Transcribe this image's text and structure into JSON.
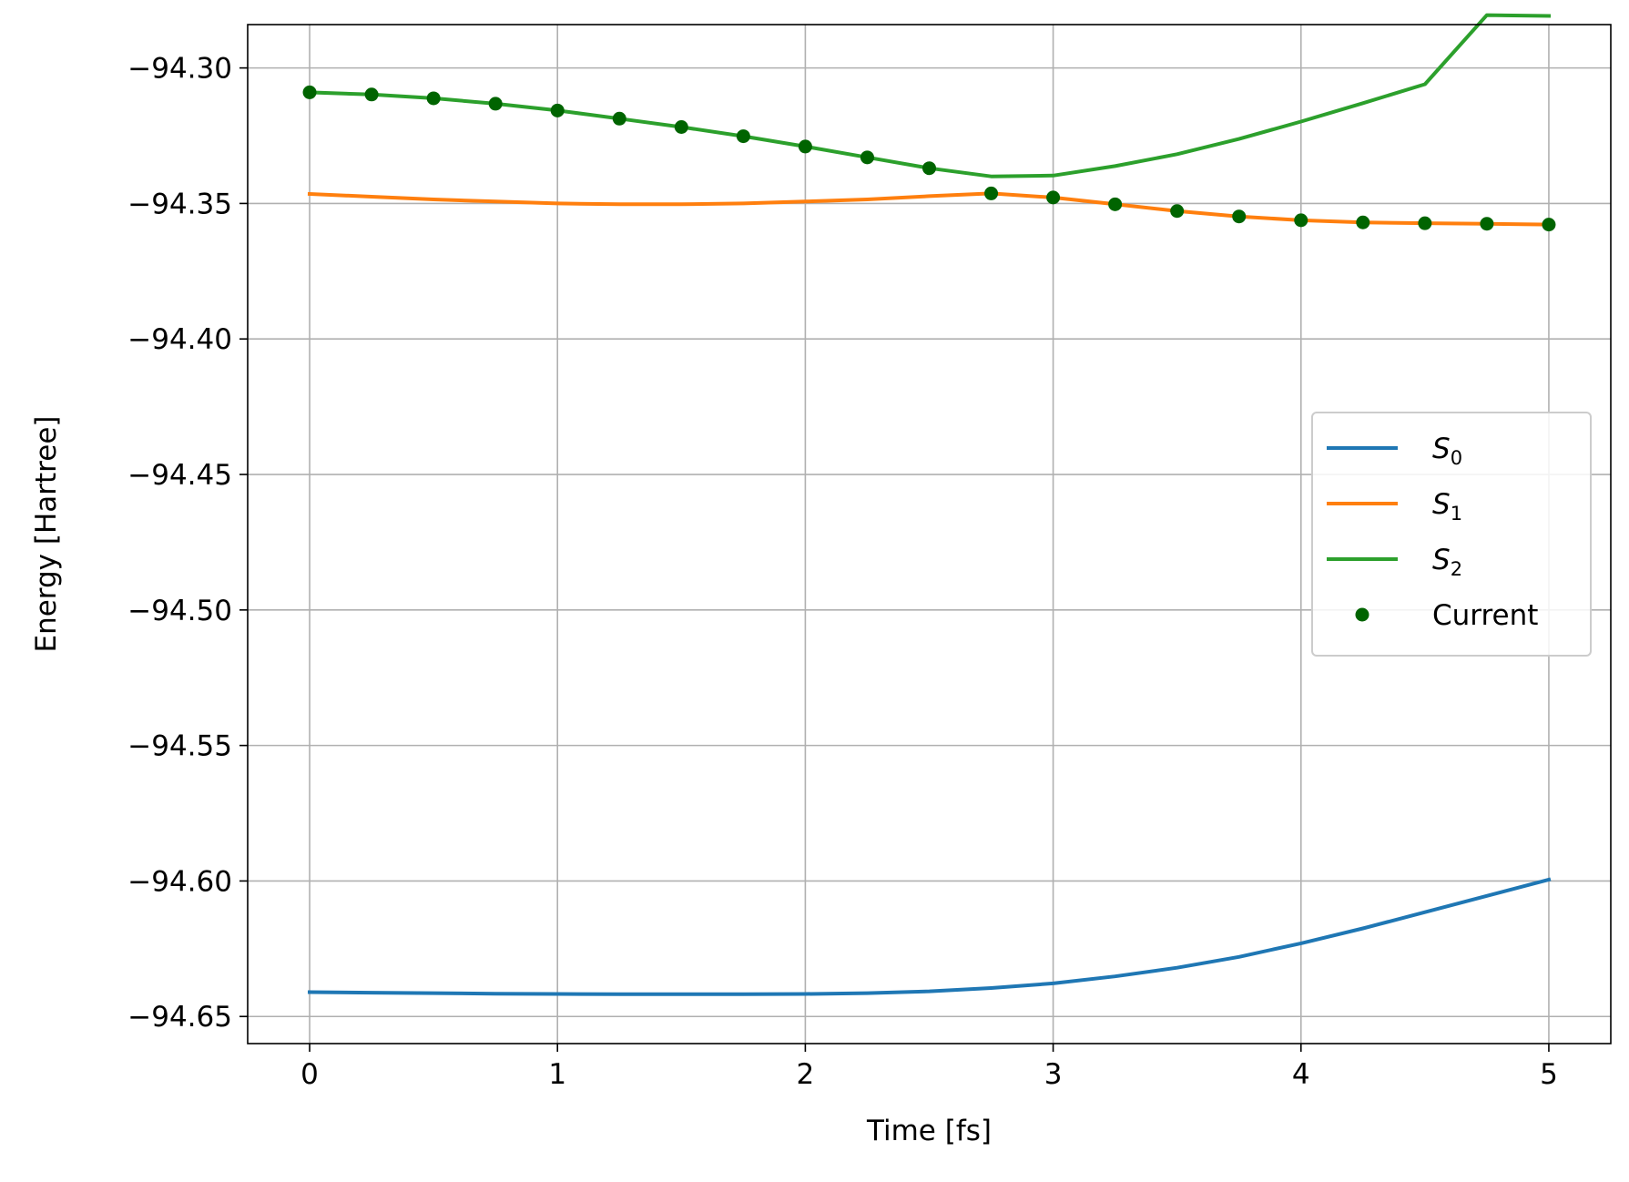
{
  "chart_data": {
    "type": "line",
    "title": "",
    "xlabel": "Time [fs]",
    "ylabel": "Energy [Hartree]",
    "xlim": [
      -0.25,
      5.25
    ],
    "ylim": [
      -94.66,
      -94.284
    ],
    "xticks": [
      0,
      1,
      2,
      3,
      4,
      5
    ],
    "xtick_labels": [
      "0",
      "1",
      "2",
      "3",
      "4",
      "5"
    ],
    "yticks": [
      -94.3,
      -94.35,
      -94.4,
      -94.45,
      -94.5,
      -94.55,
      -94.6,
      -94.65
    ],
    "ytick_labels": [
      "−94.30",
      "−94.35",
      "−94.40",
      "−94.45",
      "−94.50",
      "−94.55",
      "−94.60",
      "−94.65"
    ],
    "grid": true,
    "legend_position": "center-right",
    "x": [
      0,
      0.25,
      0.5,
      0.75,
      1.0,
      1.25,
      1.5,
      1.75,
      2.0,
      2.25,
      2.5,
      2.75,
      3.0,
      3.25,
      3.5,
      3.75,
      4.0,
      4.25,
      4.5,
      4.75,
      5.0
    ],
    "series": [
      {
        "name": "S",
        "subscript": "0",
        "style": "line",
        "color": "#1f77b4",
        "values": [
          -94.641,
          -94.6412,
          -94.6414,
          -94.6416,
          -94.6417,
          -94.6418,
          -94.6418,
          -94.6418,
          -94.6417,
          -94.6414,
          -94.6407,
          -94.6395,
          -94.6378,
          -94.6352,
          -94.632,
          -94.628,
          -94.623,
          -94.6175,
          -94.6115,
          -94.6055,
          -94.5995
        ]
      },
      {
        "name": "S",
        "subscript": "1",
        "style": "line",
        "color": "#ff7f0e",
        "values": [
          -94.3465,
          -94.3475,
          -94.3485,
          -94.3493,
          -94.35,
          -94.3503,
          -94.3503,
          -94.35,
          -94.3493,
          -94.3485,
          -94.3473,
          -94.3463,
          -94.3478,
          -94.3503,
          -94.3528,
          -94.3548,
          -94.3562,
          -94.357,
          -94.3573,
          -94.3575,
          -94.3578
        ]
      },
      {
        "name": "S",
        "subscript": "2",
        "style": "line",
        "color": "#2ca02c",
        "values": [
          -94.309,
          -94.3098,
          -94.3112,
          -94.3132,
          -94.3157,
          -94.3187,
          -94.3218,
          -94.3252,
          -94.329,
          -94.333,
          -94.337,
          -94.34,
          -94.3397,
          -94.3362,
          -94.3318,
          -94.3262,
          -94.3198,
          -94.313,
          -94.306,
          -94.2805,
          -94.2808
        ]
      },
      {
        "name": "Current",
        "style": "marker",
        "color": "#006400",
        "values": [
          -94.309,
          -94.3098,
          -94.3112,
          -94.3132,
          -94.3157,
          -94.3187,
          -94.3218,
          -94.3252,
          -94.329,
          -94.333,
          -94.337,
          -94.3463,
          -94.3478,
          -94.3503,
          -94.3528,
          -94.3548,
          -94.3562,
          -94.357,
          -94.3573,
          -94.3575,
          -94.3578
        ]
      }
    ]
  }
}
